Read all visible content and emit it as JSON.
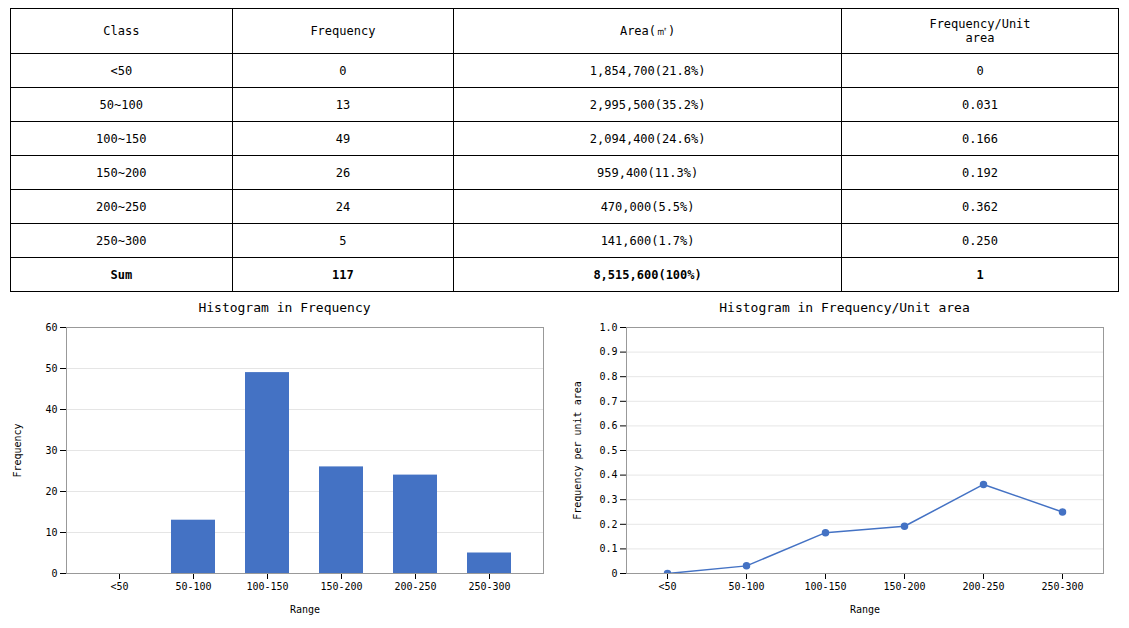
{
  "chart_data": [
    {
      "type": "table",
      "color": "#000000",
      "columns": [
        "Class",
        "Frequency",
        "Area(㎡)",
        "Frequency/Unit\narea"
      ],
      "rows": [
        [
          "<50",
          "0",
          "1,854,700(21.8%)",
          "0"
        ],
        [
          "50~100",
          "13",
          "2,995,500(35.2%)",
          "0.031"
        ],
        [
          "100~150",
          "49",
          "2,094,400(24.6%)",
          "0.166"
        ],
        [
          "150~200",
          "26",
          "959,400(11.3%)",
          "0.192"
        ],
        [
          "200~250",
          "24",
          "470,000(5.5%)",
          "0.362"
        ],
        [
          "250~300",
          "5",
          "141,600(1.7%)",
          "0.250"
        ],
        [
          "Sum",
          "117",
          "8,515,600(100%)",
          "1"
        ]
      ]
    },
    {
      "type": "bar",
      "title": "Histogram in Frequency",
      "categories": [
        "<50",
        "50-100",
        "100-150",
        "150-200",
        "200-250",
        "250-300"
      ],
      "values": [
        0,
        13,
        49,
        26,
        24,
        5
      ],
      "color": "#4472C4",
      "xlabel": "Range",
      "ylabel": "Frequency",
      "ylim": [
        0,
        60
      ],
      "yticks": [
        0,
        10,
        20,
        30,
        40,
        50,
        60
      ],
      "grid": true
    },
    {
      "type": "line",
      "title": "Histogram in Frequency/Unit area",
      "categories": [
        "<50",
        "50-100",
        "100-150",
        "150-200",
        "200-250",
        "250-300"
      ],
      "values": [
        0,
        0.031,
        0.166,
        0.192,
        0.362,
        0.25
      ],
      "color": "#4472C4",
      "marker": "circle",
      "xlabel": "Range",
      "ylabel": "Frequency per unit area",
      "ylim": [
        0,
        1.0
      ],
      "yticks": [
        0,
        0.1,
        0.2,
        0.3,
        0.4,
        0.5,
        0.6,
        0.7,
        0.8,
        0.9,
        {
          "value": 1.0,
          "label": "1.0"
        }
      ],
      "grid": true
    }
  ]
}
